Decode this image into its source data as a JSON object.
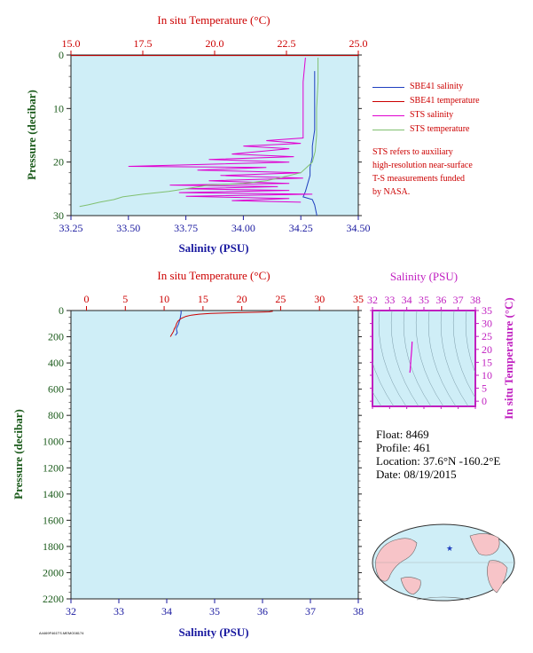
{
  "colors": {
    "plot_bg": "#cfeef7",
    "sbe_salinity": "#1f3fbf",
    "sbe_temperature": "#cc0000",
    "sts_salinity": "#e000d0",
    "sts_temperature": "#80c070",
    "axis_temp": "#cc0000",
    "axis_sal": "#1a1aa0",
    "axis_pres": "#1a5a1a",
    "ts_axis": "#c020c0",
    "land": "#f7c4c8",
    "ocean": "#cfeef7"
  },
  "legend": {
    "items": [
      {
        "label": "SBE41 salinity",
        "color": "#1f3fbf"
      },
      {
        "label": "SBE41 temperature",
        "color": "#cc0000"
      },
      {
        "label": "STS salinity",
        "color": "#e000d0"
      },
      {
        "label": "STS temperature",
        "color": "#80c070"
      }
    ],
    "note_lines": [
      "STS refers to auxiliary",
      "high-resolution near-surface",
      "T-S measurements funded",
      "by NASA."
    ]
  },
  "info": {
    "float": "Float:  8469",
    "profile": "Profile:  461",
    "location": "Location:  37.6°N  -160.2°E",
    "date": "Date:  08/19/2015"
  },
  "footer": "A4469F461TS.MEMO08174",
  "chart_data": [
    {
      "id": "top-profile",
      "type": "line",
      "title_temp_axis": "In situ Temperature (°C)",
      "xlabel": "Salinity (PSU)",
      "ylabel": "Pressure (decibar)",
      "temp_ticks": [
        15.0,
        17.5,
        20.0,
        22.5,
        25.0
      ],
      "temp_tick_labels": [
        "15.0",
        "17.5",
        "20.0",
        "22.5",
        "25.0"
      ],
      "temp_range": [
        15.0,
        25.0
      ],
      "sal_ticks": [
        33.25,
        33.5,
        33.75,
        34.0,
        34.25,
        34.5
      ],
      "sal_tick_labels": [
        "33.25",
        "33.50",
        "33.75",
        "34.00",
        "34.25",
        "34.50"
      ],
      "sal_range": [
        33.25,
        34.5
      ],
      "pres_ticks": [
        0,
        10,
        20,
        30
      ],
      "pres_tick_labels": [
        "0",
        "10",
        "20",
        "30"
      ],
      "pres_range": [
        0,
        30
      ],
      "series": [
        {
          "name": "SBE41 salinity",
          "axis": "sal",
          "points": [
            [
              34.31,
              3
            ],
            [
              34.31,
              6
            ],
            [
              34.31,
              10
            ],
            [
              34.31,
              14
            ],
            [
              34.3,
              17
            ],
            [
              34.3,
              19
            ],
            [
              34.29,
              21
            ],
            [
              34.29,
              22.5
            ],
            [
              34.28,
              24
            ],
            [
              34.27,
              25.5
            ],
            [
              34.26,
              26.5
            ],
            [
              34.3,
              27
            ],
            [
              34.31,
              28
            ],
            [
              34.32,
              30
            ]
          ]
        },
        {
          "name": "SBE41 temperature",
          "axis": "temp",
          "points": [
            [
              15.0,
              0.1
            ],
            [
              23.3,
              0.1
            ],
            [
              25.0,
              0.1
            ]
          ]
        },
        {
          "name": "STS salinity",
          "axis": "sal",
          "points": [
            [
              34.27,
              0.5
            ],
            [
              34.26,
              5
            ],
            [
              34.26,
              10
            ],
            [
              34.26,
              14
            ],
            [
              34.26,
              15.5
            ],
            [
              34.1,
              16
            ],
            [
              34.25,
              16.5
            ],
            [
              34.0,
              17
            ],
            [
              34.2,
              17.5
            ],
            [
              33.95,
              18.5
            ],
            [
              34.22,
              19
            ],
            [
              33.85,
              19.5
            ],
            [
              34.2,
              20
            ],
            [
              33.5,
              20.8
            ],
            [
              34.1,
              21
            ],
            [
              33.8,
              21.5
            ],
            [
              34.25,
              22
            ],
            [
              33.9,
              22.5
            ],
            [
              34.26,
              23
            ],
            [
              33.85,
              23.5
            ],
            [
              34.2,
              24
            ],
            [
              33.68,
              24.3
            ],
            [
              34.15,
              24.6
            ],
            [
              33.75,
              25
            ],
            [
              34.2,
              25.3
            ],
            [
              33.72,
              25.7
            ],
            [
              34.3,
              26
            ],
            [
              33.75,
              26.4
            ],
            [
              34.2,
              26.8
            ],
            [
              33.95,
              27.2
            ],
            [
              34.25,
              27.5
            ]
          ]
        },
        {
          "name": "STS temperature",
          "axis": "temp",
          "points": [
            [
              23.6,
              0.5
            ],
            [
              23.6,
              5
            ],
            [
              23.55,
              10
            ],
            [
              23.55,
              15
            ],
            [
              23.5,
              18
            ],
            [
              23.4,
              20
            ],
            [
              23.2,
              21
            ],
            [
              23.0,
              22
            ],
            [
              22.6,
              22.5
            ],
            [
              22.2,
              23
            ],
            [
              21.8,
              23.5
            ],
            [
              21.0,
              24
            ],
            [
              19.8,
              24.3
            ],
            [
              19.0,
              25
            ],
            [
              18.4,
              25.5
            ],
            [
              17.5,
              26
            ],
            [
              16.8,
              26.5
            ],
            [
              16.5,
              27
            ],
            [
              16.0,
              27.5
            ],
            [
              15.6,
              28
            ],
            [
              15.3,
              28.3
            ]
          ]
        }
      ]
    },
    {
      "id": "bottom-profile",
      "type": "line",
      "title_temp_axis": "In situ Temperature (°C)",
      "xlabel": "Salinity (PSU)",
      "ylabel": "Pressure (decibar)",
      "temp_ticks": [
        0,
        5,
        10,
        15,
        20,
        25,
        30,
        35
      ],
      "temp_tick_labels": [
        "0",
        "5",
        "10",
        "15",
        "20",
        "25",
        "30",
        "35"
      ],
      "temp_range": [
        -2,
        35
      ],
      "sal_ticks": [
        32,
        33,
        34,
        35,
        36,
        37,
        38
      ],
      "sal_tick_labels": [
        "32",
        "33",
        "34",
        "35",
        "36",
        "37",
        "38"
      ],
      "sal_range": [
        32,
        38
      ],
      "pres_ticks": [
        0,
        200,
        400,
        600,
        800,
        1000,
        1200,
        1400,
        1600,
        1800,
        2000,
        2200
      ],
      "pres_tick_labels": [
        "0",
        "200",
        "400",
        "600",
        "800",
        "1000",
        "1200",
        "1400",
        "1600",
        "1800",
        "2000",
        "2200"
      ],
      "pres_range": [
        0,
        2200
      ],
      "series": [
        {
          "name": "SBE41 salinity",
          "axis": "sal",
          "points": [
            [
              34.3,
              0
            ],
            [
              34.3,
              20
            ],
            [
              34.28,
              60
            ],
            [
              34.25,
              100
            ],
            [
              34.2,
              140
            ],
            [
              34.22,
              170
            ],
            [
              34.18,
              190
            ]
          ]
        },
        {
          "name": "SBE41 temperature",
          "axis": "temp",
          "points": [
            [
              24.0,
              5
            ],
            [
              23.5,
              10
            ],
            [
              22.0,
              13
            ],
            [
              20.0,
              15
            ],
            [
              18.0,
              18
            ],
            [
              16.0,
              22
            ],
            [
              14.5,
              28
            ],
            [
              13.5,
              35
            ],
            [
              12.8,
              45
            ],
            [
              12.2,
              60
            ],
            [
              11.8,
              80
            ],
            [
              11.6,
              100
            ],
            [
              11.5,
              120
            ],
            [
              11.3,
              140
            ],
            [
              11.2,
              160
            ],
            [
              11.0,
              180
            ],
            [
              10.8,
              200
            ]
          ]
        }
      ]
    },
    {
      "id": "ts-diagram",
      "type": "scatter",
      "title": "Salinity (PSU)",
      "ylabel": "In situ Temperature (°C)",
      "sal_ticks": [
        32,
        33,
        34,
        35,
        36,
        37,
        38
      ],
      "sal_tick_labels": [
        "32",
        "33",
        "34",
        "35",
        "36",
        "37",
        "38"
      ],
      "sal_range": [
        32,
        38
      ],
      "temp_ticks": [
        0,
        5,
        10,
        15,
        20,
        25,
        30,
        35
      ],
      "temp_tick_labels": [
        "0",
        "5",
        "10",
        "15",
        "20",
        "25",
        "30",
        "35"
      ],
      "temp_range": [
        -2,
        35
      ],
      "series": [
        {
          "name": "T-S",
          "points": [
            [
              34.31,
              23
            ],
            [
              34.29,
              20
            ],
            [
              34.25,
              17
            ],
            [
              34.22,
              14
            ],
            [
              34.2,
              12
            ],
            [
              34.18,
              11
            ]
          ]
        }
      ]
    }
  ]
}
